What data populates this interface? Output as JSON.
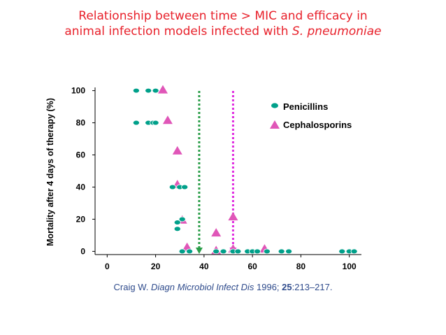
{
  "title": {
    "line1": "Relationship between time > MIC and efficacy in",
    "line2_prefix": "animal infection models infected with ",
    "line2_italic": "S. pneumoniae"
  },
  "citation": {
    "author": "Craig W. ",
    "journal": "Diagn Microbiol Infect Dis",
    "year": " 1996; ",
    "volume": "25",
    "pages": ":213–217."
  },
  "chart_data": {
    "type": "scatter",
    "ylabel": "Mortality after 4 days of therapy (%)",
    "xlabel": "",
    "xlim": [
      -5,
      105
    ],
    "ylim": [
      -2,
      102
    ],
    "xticks": [
      0,
      20,
      40,
      60,
      80,
      100
    ],
    "yticks": [
      0,
      20,
      40,
      60,
      80,
      100
    ],
    "grid": false,
    "legend_position": "top-right",
    "colors": {
      "penicillins": "#00a08a",
      "cephalosporins": "#e056b8",
      "line_green": "#2a9d48",
      "line_magenta": "#e02be0"
    },
    "vlines": [
      {
        "x": 38,
        "color": "#2a9d48"
      },
      {
        "x": 52,
        "color": "#e02be0"
      }
    ],
    "series": [
      {
        "name": "Penicillins",
        "marker": "ellipse",
        "points": [
          [
            12,
            100
          ],
          [
            17,
            100
          ],
          [
            20,
            100
          ],
          [
            12,
            80
          ],
          [
            17,
            80
          ],
          [
            19,
            80
          ],
          [
            20,
            80
          ],
          [
            27,
            40
          ],
          [
            30,
            40
          ],
          [
            32,
            40
          ],
          [
            29,
            18
          ],
          [
            31,
            20
          ],
          [
            29,
            14
          ],
          [
            31,
            0
          ],
          [
            34,
            0
          ],
          [
            45,
            0
          ],
          [
            48,
            0
          ],
          [
            52,
            0
          ],
          [
            54,
            0
          ],
          [
            58,
            0
          ],
          [
            60,
            0
          ],
          [
            62,
            0
          ],
          [
            66,
            0
          ],
          [
            72,
            0
          ],
          [
            75,
            0
          ],
          [
            97,
            0
          ],
          [
            100,
            0
          ],
          [
            102,
            0
          ]
        ]
      },
      {
        "name": "Cephalosporins",
        "marker": "triangle",
        "points": [
          [
            23,
            100
          ],
          [
            25,
            81
          ],
          [
            29,
            62
          ],
          [
            29,
            41
          ],
          [
            31,
            19
          ],
          [
            33,
            2
          ],
          [
            45,
            0
          ],
          [
            45,
            11
          ],
          [
            52,
            21
          ],
          [
            52,
            1
          ],
          [
            65,
            1
          ]
        ]
      }
    ]
  }
}
